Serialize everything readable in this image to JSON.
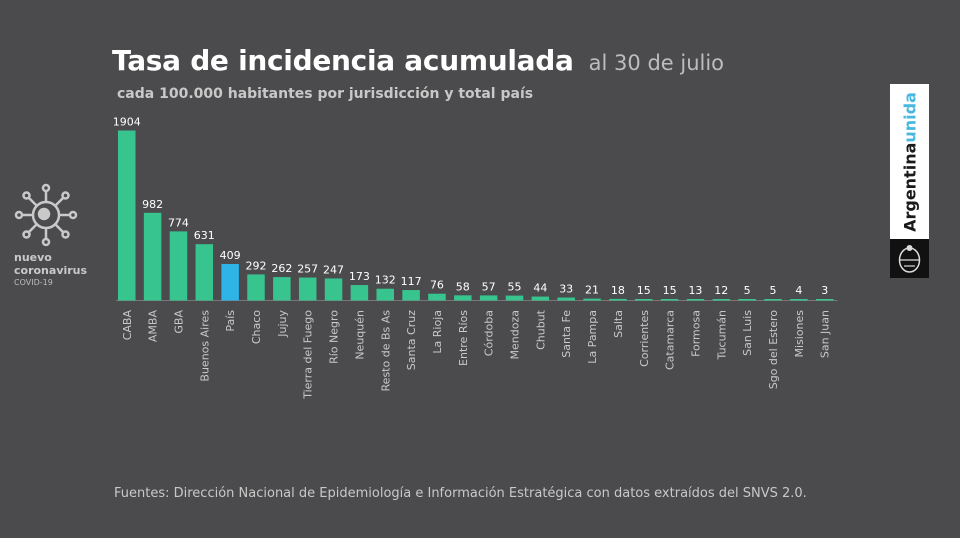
{
  "header": {
    "title": "Tasa de incidencia acumulada",
    "date": "al 30 de julio",
    "subtitle": "cada 100.000 habitantes por jurisdicción y total país"
  },
  "logo_left": {
    "line1": "nuevo",
    "line2": "coronavirus",
    "line3": "COVID-19"
  },
  "brand": {
    "part1": "Argentina",
    "part2": "unida"
  },
  "source": "Fuentes: Dirección Nacional de Epidemiología e Información Estratégica con datos extraídos del SNVS 2.0.",
  "colors": {
    "background": "#4b4b4d",
    "bar": "#37c48f",
    "highlight": "#2fb4e8",
    "baseline": "#777777"
  },
  "chart_data": {
    "type": "bar",
    "title": "Tasa de incidencia acumulada",
    "xlabel": "",
    "ylabel": "",
    "ylim": [
      0,
      1904
    ],
    "highlight_category": "País",
    "categories": [
      "CABA",
      "AMBA",
      "GBA",
      "Buenos Aires",
      "País",
      "Chaco",
      "Jujuy",
      "Tierra del Fuego",
      "Río Negro",
      "Neuquén",
      "Resto de Bs As",
      "Santa Cruz",
      "La Rioja",
      "Entre Ríos",
      "Córdoba",
      "Mendoza",
      "Chubut",
      "Santa Fe",
      "La Pampa",
      "Salta",
      "Corrientes",
      "Catamarca",
      "Formosa",
      "Tucumán",
      "San Luis",
      "Sgo del Estero",
      "Misiones",
      "San Juan"
    ],
    "values": [
      1904,
      982,
      774,
      631,
      409,
      292,
      262,
      257,
      247,
      173,
      132,
      117,
      76,
      58,
      57,
      55,
      44,
      33,
      21,
      18,
      15,
      15,
      13,
      12,
      5,
      5,
      4,
      3
    ]
  }
}
